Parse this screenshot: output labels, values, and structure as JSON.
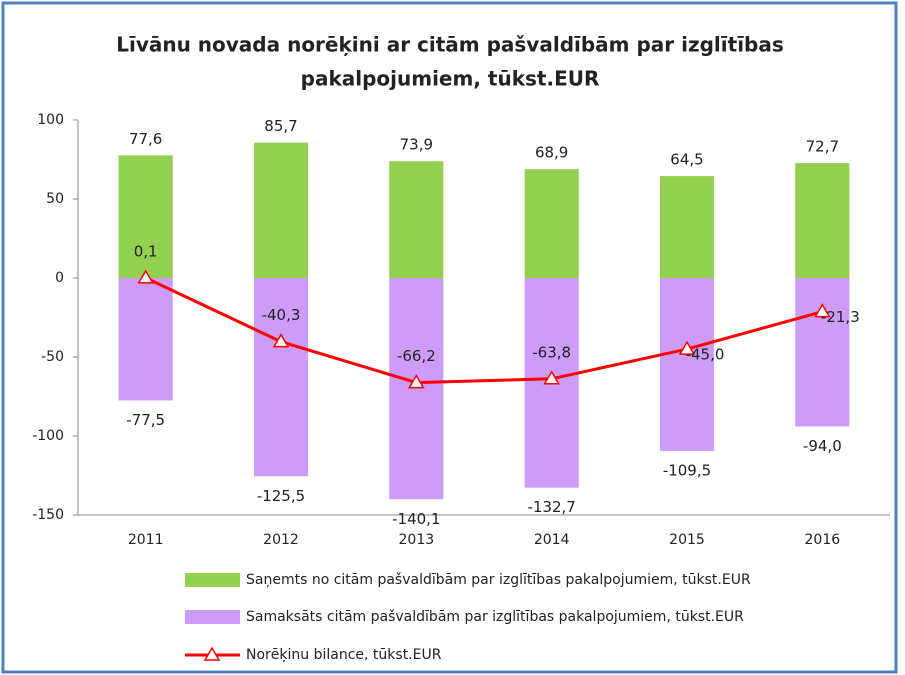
{
  "chart_data": {
    "type": "bar",
    "title": [
      "Līvānu novada norēķini ar citām pašvaldībām par izglītības",
      "pakalpojumiem, tūkst.EUR"
    ],
    "categories": [
      "2011",
      "2012",
      "2013",
      "2014",
      "2015",
      "2016"
    ],
    "series": [
      {
        "name": "Saņemts no citām pašvaldībām par izglītības pakalpojumiem, tūkst.EUR",
        "type": "bar",
        "color": "#92d050",
        "values": [
          77.6,
          85.7,
          73.9,
          68.9,
          64.5,
          72.7
        ],
        "value_labels": [
          "77,6",
          "85,7",
          "73,9",
          "68,9",
          "64,5",
          "72,7"
        ]
      },
      {
        "name": "Samaksāts citām pašvaldībām par izglītības pakalpojumiem, tūkst.EUR",
        "type": "bar",
        "color": "#cc9cf8",
        "values": [
          -77.5,
          -125.5,
          -140.1,
          -132.7,
          -109.5,
          -94.0
        ],
        "value_labels": [
          "-77,5",
          "-125,5",
          "-140,1",
          "-132,7",
          "-109,5",
          "-94,0"
        ]
      },
      {
        "name": "Norēķinu bilance, tūkst.EUR",
        "type": "line",
        "color": "#ff0000",
        "values": [
          0.1,
          -40.3,
          -66.2,
          -63.8,
          -45.0,
          -21.3
        ],
        "value_labels": [
          "0,1",
          "-40,3",
          "-66,2",
          "-63,8",
          "-45,0",
          "-21,3"
        ]
      }
    ],
    "ylim": [
      -150,
      100
    ],
    "yticks": [
      -150,
      -100,
      -50,
      0,
      50,
      100
    ],
    "grid": false
  }
}
